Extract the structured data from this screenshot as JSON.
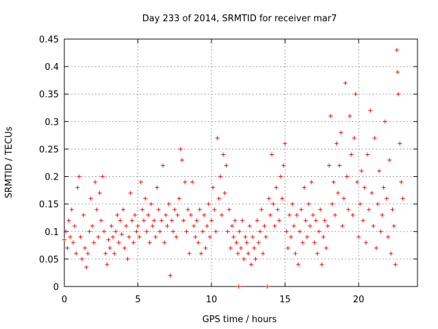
{
  "chart_data": {
    "type": "scatter",
    "title": "Day 233 of 2014, SRMTID for receiver mar7",
    "xlabel": "GPS time / hours",
    "ylabel": "SRMTID / TECUs",
    "xlim": [
      0,
      24
    ],
    "ylim": [
      0,
      0.45
    ],
    "xticks": [
      0,
      5,
      10,
      15,
      20
    ],
    "xtick_labels": [
      "0",
      "5",
      "10",
      "15",
      "20"
    ],
    "yticks": [
      0,
      0.05,
      0.1,
      0.15,
      0.2,
      0.25,
      0.3,
      0.35,
      0.4,
      0.45
    ],
    "ytick_labels": [
      "0",
      "0.05",
      "0.1",
      "0.15",
      "0.2",
      "0.25",
      "0.3",
      "0.35",
      "0.4",
      "0.45"
    ],
    "grid": true,
    "marker": "+",
    "color": "#ff0000",
    "series": [
      {
        "name": "SRMTID",
        "points": [
          [
            0.0,
            0.085
          ],
          [
            0.1,
            0.1
          ],
          [
            0.2,
            0.07
          ],
          [
            0.3,
            0.12
          ],
          [
            0.4,
            0.09
          ],
          [
            0.5,
            0.14
          ],
          [
            0.6,
            0.08
          ],
          [
            0.7,
            0.11
          ],
          [
            0.8,
            0.06
          ],
          [
            0.9,
            0.18
          ],
          [
            1.0,
            0.2
          ],
          [
            1.1,
            0.09
          ],
          [
            1.2,
            0.05
          ],
          [
            1.3,
            0.13
          ],
          [
            1.4,
            0.07
          ],
          [
            1.5,
            0.035
          ],
          [
            1.6,
            0.06
          ],
          [
            1.7,
            0.1
          ],
          [
            1.8,
            0.16
          ],
          [
            1.9,
            0.11
          ],
          [
            2.0,
            0.08
          ],
          [
            2.1,
            0.19
          ],
          [
            2.2,
            0.14
          ],
          [
            2.3,
            0.09
          ],
          [
            2.4,
            0.17
          ],
          [
            2.5,
            0.12
          ],
          [
            2.6,
            0.2
          ],
          [
            2.7,
            0.1
          ],
          [
            2.8,
            0.06
          ],
          [
            2.9,
            0.04
          ],
          [
            3.0,
            0.085
          ],
          [
            3.1,
            0.07
          ],
          [
            3.2,
            0.11
          ],
          [
            3.3,
            0.09
          ],
          [
            3.4,
            0.06
          ],
          [
            3.5,
            0.1
          ],
          [
            3.6,
            0.13
          ],
          [
            3.7,
            0.08
          ],
          [
            3.8,
            0.12
          ],
          [
            3.9,
            0.095
          ],
          [
            4.0,
            0.14
          ],
          [
            4.1,
            0.07
          ],
          [
            4.2,
            0.11
          ],
          [
            4.3,
            0.05
          ],
          [
            4.4,
            0.09
          ],
          [
            4.5,
            0.17
          ],
          [
            4.6,
            0.12
          ],
          [
            4.7,
            0.08
          ],
          [
            4.8,
            0.13
          ],
          [
            4.9,
            0.1
          ],
          [
            5.0,
            0.11
          ],
          [
            5.1,
            0.09
          ],
          [
            5.2,
            0.19
          ],
          [
            5.3,
            0.14
          ],
          [
            5.4,
            0.12
          ],
          [
            5.5,
            0.16
          ],
          [
            5.6,
            0.1
          ],
          [
            5.7,
            0.13
          ],
          [
            5.8,
            0.08
          ],
          [
            5.9,
            0.15
          ],
          [
            6.0,
            0.11
          ],
          [
            6.1,
            0.12
          ],
          [
            6.2,
            0.09
          ],
          [
            6.3,
            0.18
          ],
          [
            6.4,
            0.14
          ],
          [
            6.5,
            0.1
          ],
          [
            6.6,
            0.12
          ],
          [
            6.7,
            0.22
          ],
          [
            6.8,
            0.08
          ],
          [
            6.9,
            0.13
          ],
          [
            7.0,
            0.11
          ],
          [
            7.1,
            0.15
          ],
          [
            7.2,
            0.02
          ],
          [
            7.3,
            0.12
          ],
          [
            7.4,
            0.1
          ],
          [
            7.5,
            0.14
          ],
          [
            7.6,
            0.09
          ],
          [
            7.7,
            0.13
          ],
          [
            7.8,
            0.16
          ],
          [
            7.9,
            0.25
          ],
          [
            8.0,
            0.23
          ],
          [
            8.1,
            0.12
          ],
          [
            8.2,
            0.19
          ],
          [
            8.3,
            0.1
          ],
          [
            8.4,
            0.14
          ],
          [
            8.5,
            0.06
          ],
          [
            8.6,
            0.13
          ],
          [
            8.7,
            0.19
          ],
          [
            8.8,
            0.11
          ],
          [
            8.9,
            0.09
          ],
          [
            9.0,
            0.12
          ],
          [
            9.1,
            0.08
          ],
          [
            9.2,
            0.14
          ],
          [
            9.3,
            0.06
          ],
          [
            9.4,
            0.1
          ],
          [
            9.5,
            0.13
          ],
          [
            9.6,
            0.07
          ],
          [
            9.7,
            0.11
          ],
          [
            9.8,
            0.15
          ],
          [
            9.9,
            0.09
          ],
          [
            10.0,
            0.12
          ],
          [
            10.1,
            0.18
          ],
          [
            10.2,
            0.14
          ],
          [
            10.3,
            0.1
          ],
          [
            10.4,
            0.27
          ],
          [
            10.5,
            0.16
          ],
          [
            10.6,
            0.2
          ],
          [
            10.7,
            0.13
          ],
          [
            10.8,
            0.24
          ],
          [
            10.9,
            0.17
          ],
          [
            11.0,
            0.22
          ],
          [
            11.1,
            0.1
          ],
          [
            11.2,
            0.14
          ],
          [
            11.3,
            0.07
          ],
          [
            11.4,
            0.11
          ],
          [
            11.5,
            0.09
          ],
          [
            11.6,
            0.12
          ],
          [
            11.7,
            0.08
          ],
          [
            11.8,
            0.06
          ],
          [
            11.85,
            0.0
          ],
          [
            11.9,
            0.1
          ],
          [
            12.0,
            0.07
          ],
          [
            12.1,
            0.12
          ],
          [
            12.2,
            0.05
          ],
          [
            12.3,
            0.09
          ],
          [
            12.4,
            0.08
          ],
          [
            12.5,
            0.06
          ],
          [
            12.6,
            0.11
          ],
          [
            12.7,
            0.04
          ],
          [
            12.8,
            0.09
          ],
          [
            12.9,
            0.07
          ],
          [
            13.0,
            0.05
          ],
          [
            13.1,
            0.12
          ],
          [
            13.2,
            0.08
          ],
          [
            13.3,
            0.1
          ],
          [
            13.4,
            0.14
          ],
          [
            13.5,
            0.06
          ],
          [
            13.6,
            0.11
          ],
          [
            13.7,
            0.09
          ],
          [
            13.8,
            0.0
          ],
          [
            13.9,
            0.16
          ],
          [
            14.0,
            0.13
          ],
          [
            14.1,
            0.24
          ],
          [
            14.2,
            0.15
          ],
          [
            14.3,
            0.11
          ],
          [
            14.4,
            0.18
          ],
          [
            14.5,
            0.14
          ],
          [
            14.6,
            0.12
          ],
          [
            14.7,
            0.2
          ],
          [
            14.8,
            0.16
          ],
          [
            14.9,
            0.22
          ],
          [
            15.0,
            0.26
          ],
          [
            15.1,
            0.1
          ],
          [
            15.2,
            0.07
          ],
          [
            15.3,
            0.13
          ],
          [
            15.4,
            0.09
          ],
          [
            15.5,
            0.15
          ],
          [
            15.6,
            0.11
          ],
          [
            15.7,
            0.06
          ],
          [
            15.8,
            0.13
          ],
          [
            15.9,
            0.04
          ],
          [
            16.0,
            0.1
          ],
          [
            16.1,
            0.14
          ],
          [
            16.2,
            0.08
          ],
          [
            16.3,
            0.18
          ],
          [
            16.4,
            0.12
          ],
          [
            16.5,
            0.09
          ],
          [
            16.6,
            0.15
          ],
          [
            16.7,
            0.11
          ],
          [
            16.8,
            0.19
          ],
          [
            16.9,
            0.13
          ],
          [
            17.0,
            0.08
          ],
          [
            17.1,
            0.12
          ],
          [
            17.2,
            0.06
          ],
          [
            17.3,
            0.1
          ],
          [
            17.4,
            0.14
          ],
          [
            17.5,
            0.04
          ],
          [
            17.6,
            0.09
          ],
          [
            17.7,
            0.12
          ],
          [
            17.8,
            0.07
          ],
          [
            17.9,
            0.11
          ],
          [
            18.0,
            0.22
          ],
          [
            18.1,
            0.31
          ],
          [
            18.2,
            0.15
          ],
          [
            18.3,
            0.19
          ],
          [
            18.4,
            0.13
          ],
          [
            18.5,
            0.26
          ],
          [
            18.6,
            0.17
          ],
          [
            18.7,
            0.22
          ],
          [
            18.8,
            0.28
          ],
          [
            18.9,
            0.11
          ],
          [
            19.0,
            0.16
          ],
          [
            19.1,
            0.37
          ],
          [
            19.2,
            0.2
          ],
          [
            19.3,
            0.14
          ],
          [
            19.4,
            0.31
          ],
          [
            19.5,
            0.24
          ],
          [
            19.6,
            0.13
          ],
          [
            19.7,
            0.27
          ],
          [
            19.8,
            0.35
          ],
          [
            19.9,
            0.19
          ],
          [
            20.0,
            0.09
          ],
          [
            20.1,
            0.15
          ],
          [
            20.2,
            0.21
          ],
          [
            20.3,
            0.12
          ],
          [
            20.4,
            0.18
          ],
          [
            20.5,
            0.08
          ],
          [
            20.6,
            0.24
          ],
          [
            20.7,
            0.14
          ],
          [
            20.8,
            0.32
          ],
          [
            20.9,
            0.17
          ],
          [
            21.0,
            0.11
          ],
          [
            21.1,
            0.27
          ],
          [
            21.2,
            0.07
          ],
          [
            21.3,
            0.15
          ],
          [
            21.4,
            0.21
          ],
          [
            21.5,
            0.1
          ],
          [
            21.6,
            0.13
          ],
          [
            21.7,
            0.18
          ],
          [
            21.8,
            0.3
          ],
          [
            21.9,
            0.16
          ],
          [
            22.0,
            0.09
          ],
          [
            22.1,
            0.23
          ],
          [
            22.2,
            0.06
          ],
          [
            22.3,
            0.14
          ],
          [
            22.4,
            0.11
          ],
          [
            22.5,
            0.04
          ],
          [
            22.6,
            0.43
          ],
          [
            22.65,
            0.39
          ],
          [
            22.7,
            0.35
          ],
          [
            22.8,
            0.26
          ],
          [
            22.9,
            0.19
          ],
          [
            23.0,
            0.16
          ]
        ]
      }
    ]
  }
}
